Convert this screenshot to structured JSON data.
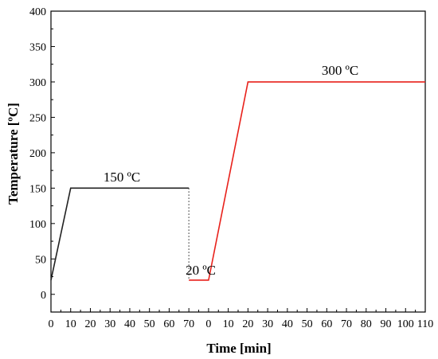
{
  "chart_data": {
    "type": "line",
    "xlabel": "Time [min]",
    "ylabel": "Temperature [ºC]",
    "ylim": [
      -25,
      400
    ],
    "grid": false,
    "y_ticks": [
      0,
      50,
      100,
      150,
      200,
      250,
      300,
      350,
      400
    ],
    "x_ticks": [
      "0",
      "10",
      "20",
      "30",
      "40",
      "50",
      "60",
      "70",
      "0",
      "10",
      "20",
      "30",
      "40",
      "50",
      "60",
      "70",
      "80",
      "90",
      "100",
      "110"
    ],
    "segments": [
      {
        "x_range": [
          0,
          70
        ],
        "color": "#222222",
        "x": [
          0,
          10,
          70
        ],
        "y": [
          20,
          150,
          150
        ]
      },
      {
        "x_range": [
          0,
          110
        ],
        "color": "#e8211b",
        "x": [
          0,
          20,
          110
        ],
        "y": [
          20,
          300,
          300
        ],
        "left_extension": {
          "x": -10,
          "y": 20
        }
      }
    ],
    "break_connector": {
      "from_y": 150,
      "to_y": 20,
      "style": "dotted"
    },
    "annotations": [
      "150 ºC",
      "20 ºC",
      "300 ºC"
    ]
  }
}
